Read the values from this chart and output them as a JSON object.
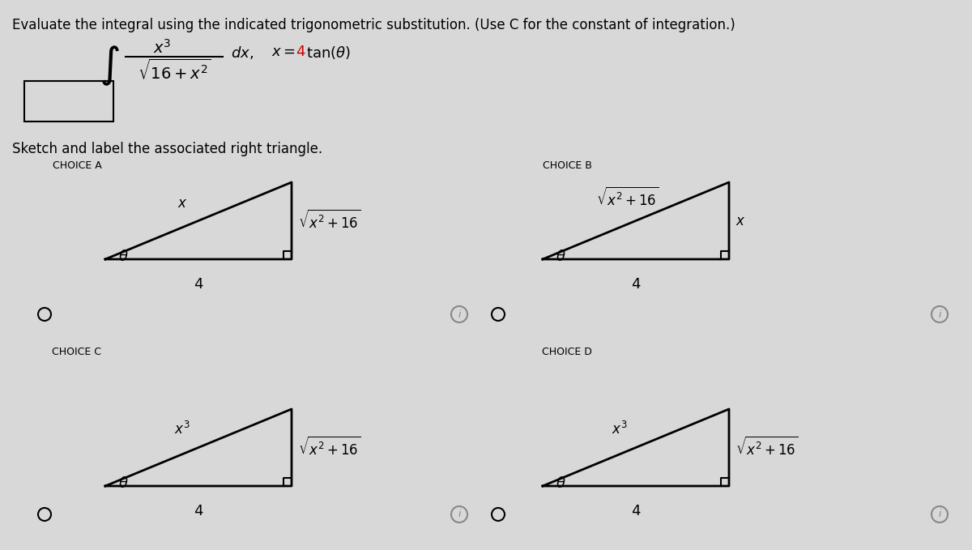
{
  "title_text": "Evaluate the integral using the indicated trigonometric substitution. (Use C for the constant of integration.)",
  "integral_text": "x³",
  "integral_denom": "16 + x²",
  "substitution": "x = 4 tan(θ)",
  "sketch_label": "Sketch and label the associated right triangle.",
  "choices": [
    "CHOICE A",
    "CHOICE B",
    "CHOICE C",
    "CHOICE D"
  ],
  "bg_color": "#d8d8d8",
  "triangle_color": "#000000",
  "text_color": "#000000",
  "red_color": "#cc0000",
  "choice_A": {
    "hypotenuse_label": "√ x² + 16",
    "vertical_label": "x",
    "horizontal_label": "4",
    "angle_label": "θ",
    "right_angle_at": "bottom_right",
    "orientation": "theta_bottom_left"
  },
  "choice_B": {
    "hypotenuse_label": "√ x² + 16",
    "vertical_label": "x",
    "horizontal_label": "4",
    "angle_label": "θ",
    "right_angle_at": "bottom_right",
    "orientation": "theta_bottom_left_hyp_top"
  },
  "choice_C": {
    "hypotenuse_label": "√ x² + 16",
    "vertical_label": "x³",
    "horizontal_label": "4",
    "angle_label": "θ",
    "right_angle_at": "bottom_right",
    "orientation": "theta_bottom_left"
  },
  "choice_D": {
    "hypotenuse_label": "√ x² + 16",
    "vertical_label": "x³",
    "horizontal_label": "4",
    "angle_label": "θ",
    "right_angle_at": "bottom_right",
    "orientation": "theta_bottom_left"
  }
}
